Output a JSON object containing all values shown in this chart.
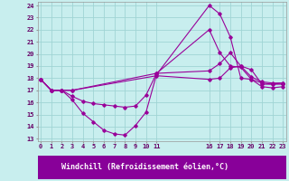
{
  "background_color": "#c8eeee",
  "grid_color": "#a0d4d4",
  "line_color": "#990099",
  "xlim": [
    -0.3,
    23.3
  ],
  "ylim": [
    12.8,
    24.3
  ],
  "yticks": [
    13,
    14,
    15,
    16,
    17,
    18,
    19,
    20,
    21,
    22,
    23,
    24
  ],
  "xticks": [
    0,
    1,
    2,
    3,
    4,
    5,
    6,
    7,
    8,
    9,
    10,
    11,
    16,
    17,
    18,
    19,
    20,
    21,
    22,
    23
  ],
  "xlabel": "Windchill (Refroidissement éolien,°C)",
  "xlabel_bg": "#880099",
  "series": [
    {
      "x": [
        0,
        1,
        2,
        3,
        4,
        5,
        6,
        7,
        8,
        9,
        10,
        11,
        16,
        17,
        18,
        19,
        20,
        21,
        22,
        23
      ],
      "y": [
        17.9,
        17.0,
        17.0,
        16.2,
        15.1,
        14.4,
        13.7,
        13.4,
        13.3,
        14.1,
        15.2,
        18.3,
        24.0,
        23.3,
        21.4,
        18.0,
        17.9,
        17.6,
        17.5,
        17.6
      ]
    },
    {
      "x": [
        0,
        1,
        2,
        3,
        4,
        5,
        6,
        7,
        8,
        9,
        10,
        11,
        16,
        17,
        18,
        19,
        20,
        21,
        22,
        23
      ],
      "y": [
        17.9,
        17.0,
        17.0,
        16.5,
        16.1,
        15.9,
        15.8,
        15.7,
        15.6,
        15.7,
        16.6,
        18.4,
        22.0,
        20.1,
        19.0,
        18.9,
        17.9,
        17.3,
        17.2,
        17.3
      ]
    },
    {
      "x": [
        0,
        1,
        2,
        3,
        11,
        16,
        17,
        18,
        19,
        20,
        21,
        22,
        23
      ],
      "y": [
        17.9,
        17.0,
        17.0,
        17.0,
        18.4,
        18.6,
        19.2,
        20.1,
        19.0,
        18.1,
        17.7,
        17.6,
        17.6
      ]
    },
    {
      "x": [
        0,
        1,
        2,
        3,
        11,
        16,
        17,
        18,
        19,
        20,
        21,
        22,
        23
      ],
      "y": [
        17.9,
        17.0,
        17.0,
        17.0,
        18.2,
        17.9,
        18.0,
        18.85,
        19.0,
        18.7,
        17.5,
        17.5,
        17.5
      ]
    }
  ]
}
